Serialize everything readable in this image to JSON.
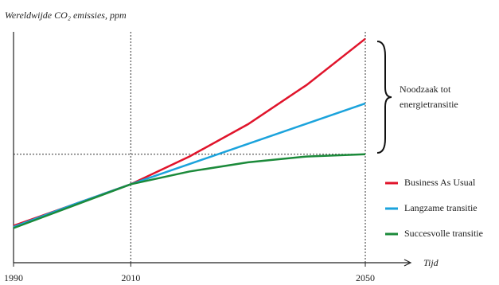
{
  "chart_data": {
    "type": "line",
    "title": "Wereldwijde CO₂ emissies, ppm",
    "x_label": "Tijd",
    "x": [
      1990,
      2000,
      2010,
      2020,
      2030,
      2040,
      2050
    ],
    "xlim": [
      1990,
      2050
    ],
    "xticks": [
      1990,
      2010,
      2050
    ],
    "ylim": [
      0,
      100
    ],
    "series": [
      {
        "name": "Business As Usual",
        "color": "#e0142b",
        "values": [
          16,
          25,
          34,
          46,
          60,
          77,
          97
        ]
      },
      {
        "name": "Langzame transitie",
        "color": "#1ba3dc",
        "values": [
          15.5,
          25,
          34,
          42.75,
          51.5,
          60.25,
          69
        ]
      },
      {
        "name": "Succesvolle transitie",
        "color": "#1b8a3a",
        "values": [
          15,
          24.5,
          34,
          39.5,
          43.5,
          46,
          47
        ]
      }
    ],
    "annotation": [
      "Noodzaak tot",
      "energietransitie"
    ],
    "legend": "right"
  }
}
